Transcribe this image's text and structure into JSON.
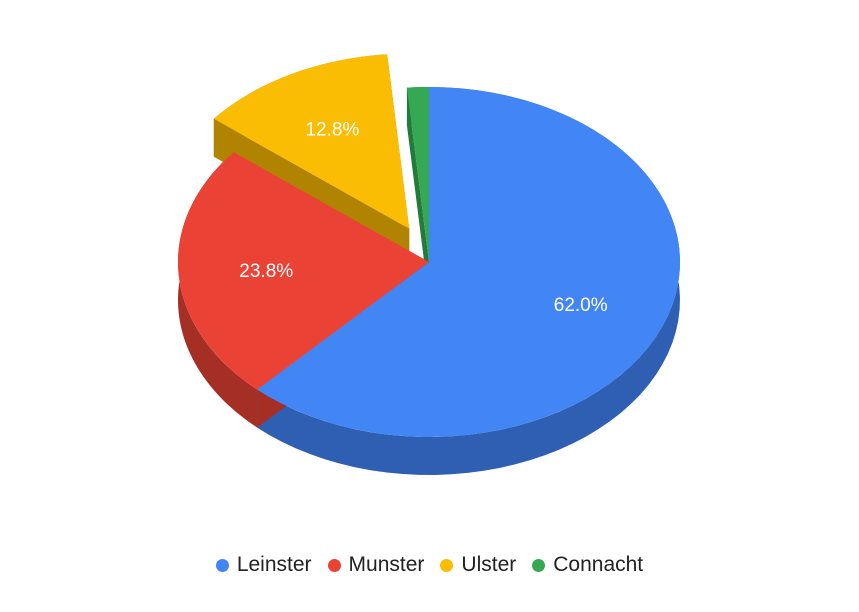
{
  "chart_data": {
    "type": "pie",
    "style": "3d",
    "legend_position": "bottom",
    "slices": [
      {
        "name": "Leinster",
        "value": 62.0,
        "label": "62.0%",
        "color": "#4285f4",
        "side_color": "#2f5fb3",
        "exploded": false
      },
      {
        "name": "Munster",
        "value": 23.8,
        "label": "23.8%",
        "color": "#ea4335",
        "side_color": "#a52f25",
        "exploded": false
      },
      {
        "name": "Ulster",
        "value": 12.8,
        "label": "12.8%",
        "color": "#fbbc04",
        "side_color": "#b08400",
        "exploded": true
      },
      {
        "name": "Connacht",
        "value": 1.4,
        "label": "",
        "color": "#34a853",
        "side_color": "#247a3b",
        "exploded": false
      }
    ]
  }
}
